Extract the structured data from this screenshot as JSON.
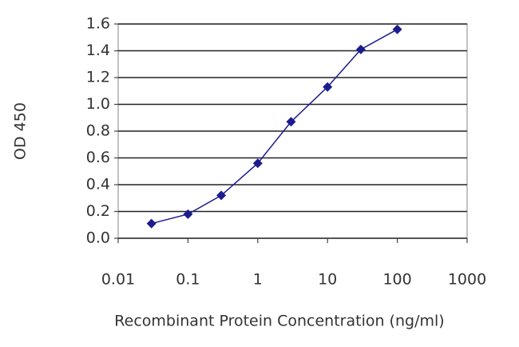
{
  "chart_data": {
    "type": "line",
    "x_label": "Recombinant Protein Concentration (ng/ml)",
    "y_label": "OD 450",
    "x": [
      0.03,
      0.1,
      0.3,
      1,
      3,
      10,
      30,
      100
    ],
    "series": [
      {
        "color": "#1c1c8f",
        "values": [
          0.11,
          0.18,
          0.32,
          0.56,
          0.87,
          1.13,
          1.41,
          1.56
        ]
      }
    ],
    "xscale": "log",
    "xlim": [
      0.01,
      1000
    ],
    "xticks": [
      0.01,
      0.1,
      1,
      10,
      100,
      1000
    ],
    "ylim": [
      0,
      1.6
    ],
    "yticks": [
      {
        "value": 0,
        "label": "0.0"
      },
      0.2,
      0.4,
      0.6,
      0.8,
      {
        "value": 1,
        "label": "1.0"
      },
      1.2,
      1.4,
      1.6
    ],
    "grid": true
  }
}
